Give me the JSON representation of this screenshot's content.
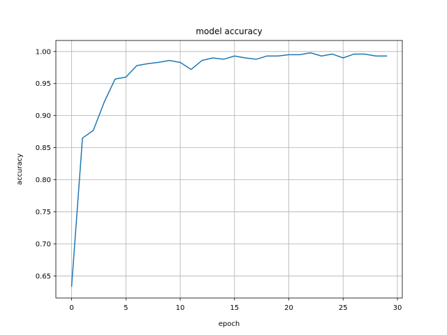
{
  "chart_data": {
    "type": "line",
    "title": "model accuracy",
    "xlabel": "epoch",
    "ylabel": "accuracy",
    "xlim": [
      -1.45,
      30.45
    ],
    "ylim": [
      0.6155,
      1.0172
    ],
    "xticks": [
      0,
      5,
      10,
      15,
      20,
      25,
      30
    ],
    "yticks": [
      0.65,
      0.7,
      0.75,
      0.8,
      0.85,
      0.9,
      0.95,
      1.0
    ],
    "xtick_labels": [
      "0",
      "5",
      "10",
      "15",
      "20",
      "25",
      "30"
    ],
    "ytick_labels": [
      "0.65",
      "0.70",
      "0.75",
      "0.80",
      "0.85",
      "0.90",
      "0.95",
      "1.00"
    ],
    "grid": true,
    "line_color": "#1f77b4",
    "series": [
      {
        "x": [
          0,
          1,
          2,
          3,
          4,
          5,
          6,
          7,
          8,
          9,
          10,
          11,
          12,
          13,
          14,
          15,
          16,
          17,
          18,
          19,
          20,
          21,
          22,
          23,
          24,
          25,
          26,
          27,
          28,
          29
        ],
        "values": [
          0.634,
          0.865,
          0.877,
          0.921,
          0.957,
          0.96,
          0.978,
          0.981,
          0.983,
          0.986,
          0.983,
          0.972,
          0.986,
          0.99,
          0.988,
          0.993,
          0.99,
          0.988,
          0.993,
          0.993,
          0.995,
          0.995,
          0.998,
          0.993,
          0.996,
          0.99,
          0.996,
          0.996,
          0.993,
          0.993
        ]
      }
    ]
  }
}
